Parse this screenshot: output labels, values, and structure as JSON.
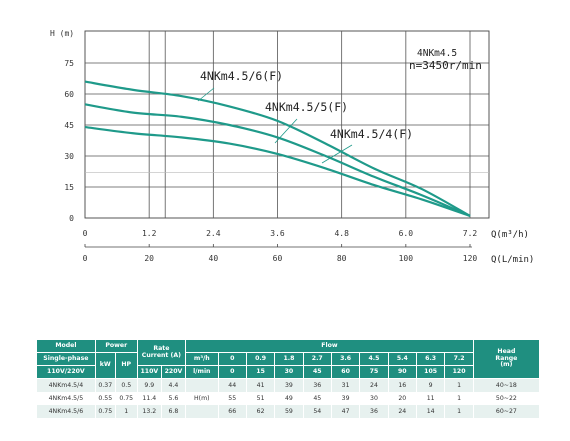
{
  "chart_data": {
    "type": "line",
    "title": "",
    "annotation_model": "4NKm4.5",
    "annotation_speed": "n=3450r/min",
    "ylabel": "H (m)",
    "ylim": [
      0,
      75
    ],
    "yticks": [
      "0",
      "15",
      "30",
      "45",
      "60",
      "75"
    ],
    "xlabel": "Q(m³/h)",
    "xlim": [
      0,
      7.2
    ],
    "xticks": [
      "0",
      "1.2",
      "2.4",
      "3.6",
      "4.8",
      "6.0",
      "7.2"
    ],
    "x2label": "Q(L/min)",
    "x2lim": [
      0,
      120
    ],
    "x2ticks": [
      "0",
      "20",
      "40",
      "60",
      "80",
      "100",
      "120"
    ],
    "grid": true,
    "color": "#1f9a8a",
    "series": [
      {
        "name": "4NKm4.5/6(F)",
        "x": [
          0,
          0.9,
          1.8,
          2.7,
          3.6,
          4.5,
          5.4,
          6.3,
          7.2
        ],
        "y": [
          66,
          62,
          59,
          54,
          47,
          36,
          24,
          14,
          1
        ]
      },
      {
        "name": "4NKm4.5/5(F)",
        "x": [
          0,
          0.9,
          1.8,
          2.7,
          3.6,
          4.5,
          5.4,
          6.3,
          7.2
        ],
        "y": [
          55,
          51,
          49,
          45,
          39,
          30,
          20,
          11,
          1
        ]
      },
      {
        "name": "4NKm4.5/4(F)",
        "x": [
          0,
          0.9,
          1.8,
          2.7,
          3.6,
          4.5,
          5.4,
          6.3,
          7.2
        ],
        "y": [
          44,
          41,
          39,
          36,
          31,
          24,
          16,
          9,
          1
        ]
      }
    ]
  },
  "table": {
    "color": "#1f8f80",
    "h_model": "Model",
    "h_power": "Power",
    "h_rate": "Rate\nCurrent (A)",
    "h_flow": "Flow",
    "h_head": "Head\nRange\n(m)",
    "h_single": "Single-phase",
    "h_volt": "110V/220V",
    "h_kw": "kW",
    "h_hp": "HP",
    "h_110": "110V",
    "h_220": "220V",
    "h_m3h": "m³/h",
    "h_lmin": "l/min",
    "h_hm": "H(m)",
    "flow_m3h": [
      "0",
      "0.9",
      "1.8",
      "2.7",
      "3.6",
      "4.5",
      "5.4",
      "6.3",
      "7.2"
    ],
    "flow_lmin": [
      "0",
      "15",
      "30",
      "45",
      "60",
      "75",
      "90",
      "105",
      "120"
    ],
    "rows": [
      {
        "model": "4NKm4.5/4",
        "kw": "0.37",
        "hp": "0.5",
        "a110": "9.9",
        "a220": "4.4",
        "heads": [
          "44",
          "41",
          "39",
          "36",
          "31",
          "24",
          "16",
          "9",
          "1"
        ],
        "range": "40~18"
      },
      {
        "model": "4NKm4.5/5",
        "kw": "0.55",
        "hp": "0.75",
        "a110": "11.4",
        "a220": "5.6",
        "heads": [
          "55",
          "51",
          "49",
          "45",
          "39",
          "30",
          "20",
          "11",
          "1"
        ],
        "range": "50~22"
      },
      {
        "model": "4NKm4.5/6",
        "kw": "0.75",
        "hp": "1",
        "a110": "13.2",
        "a220": "6.8",
        "heads": [
          "66",
          "62",
          "59",
          "54",
          "47",
          "36",
          "24",
          "14",
          "1"
        ],
        "range": "60~27"
      }
    ]
  }
}
